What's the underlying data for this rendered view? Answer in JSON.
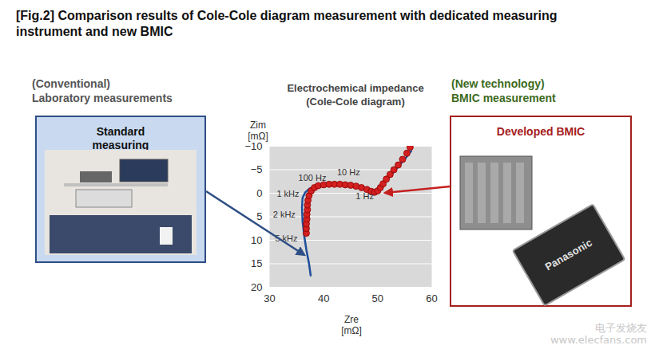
{
  "figure_title": "[Fig.2] Comparison results of Cole-Cole diagram measurement with dedicated measuring instrument and new BMIC",
  "left_panel": {
    "heading": [
      "(Conventional)",
      "Laboratory measurements"
    ],
    "box_label": "Standard measuring instrument"
  },
  "right_panel": {
    "heading": [
      "(New technology)",
      "BMIC measurement"
    ],
    "box_label": "Developed BMIC",
    "chip_text": "Panasonic"
  },
  "watermark": [
    "电子发烧友",
    "www.elecfans.com"
  ],
  "chart_data": {
    "type": "scatter",
    "title": "Electrochemical impedance",
    "subtitle": "(Cole-Cole diagram)",
    "xlabel": "Zre [mΩ]",
    "ylabel": "Zim [mΩ]",
    "xlim": [
      30,
      60
    ],
    "xticks": [
      30,
      40,
      50,
      60
    ],
    "ylim": [
      20,
      -10
    ],
    "yticks": [
      -10,
      -5,
      0,
      5,
      10,
      15,
      20
    ],
    "grid": true,
    "series": [
      {
        "name": "Standard measuring instrument",
        "type": "line",
        "color": "#1f4e9a",
        "line_style": "solid",
        "x": [
          37.6,
          37.3,
          36.8,
          36.4,
          36.1,
          36.0,
          36.1,
          36.6,
          37.4,
          38.5,
          40,
          42,
          44,
          46,
          47.6,
          48.8,
          49.6,
          50.1,
          50.8,
          51.8,
          53,
          54.2,
          55.4,
          56.2
        ],
        "values": [
          17.5,
          15,
          12,
          9,
          6,
          3,
          1,
          -0.2,
          -1.0,
          -1.6,
          -1.9,
          -2.0,
          -1.9,
          -1.6,
          -1.2,
          -0.7,
          -0.3,
          -0.6,
          -1.5,
          -3,
          -4.6,
          -6.2,
          -7.8,
          -9
        ]
      },
      {
        "name": "Developed BMIC",
        "type": "scatter",
        "color": "#d42020",
        "marker": "circle",
        "x": [
          36.8,
          36.8,
          36.8,
          36.9,
          36.9,
          37,
          37,
          37.1,
          37.3,
          37.7,
          38.3,
          39,
          40,
          41,
          42,
          43,
          44,
          45,
          46,
          47,
          48,
          48.8,
          49.4,
          50,
          50.5,
          51,
          51.6,
          52.3,
          53,
          53.8,
          54.6,
          55.4,
          56
        ],
        "values": [
          8.5,
          7.5,
          6.5,
          5.5,
          4.5,
          3.5,
          2.5,
          1.5,
          0.5,
          -0.5,
          -1.2,
          -1.6,
          -1.8,
          -1.9,
          -1.9,
          -1.9,
          -1.8,
          -1.7,
          -1.5,
          -1.2,
          -0.8,
          -0.4,
          -0.2,
          -0.5,
          -1.2,
          -2,
          -3,
          -4,
          -5,
          -6,
          -7.2,
          -8.5,
          -9.8
        ]
      }
    ],
    "annotations": [
      {
        "text": "100 Hz",
        "x": 37.9,
        "y": -3.3
      },
      {
        "text": "10 Hz",
        "x": 44.6,
        "y": -4.4
      },
      {
        "text": "1 kHz",
        "x": 33.4,
        "y": 0.2
      },
      {
        "text": "1 Hz",
        "x": 47.6,
        "y": 0.7
      },
      {
        "text": "2 kHz",
        "x": 32.7,
        "y": 4.6
      },
      {
        "text": "5 kHz",
        "x": 33.1,
        "y": 9.6
      }
    ]
  }
}
